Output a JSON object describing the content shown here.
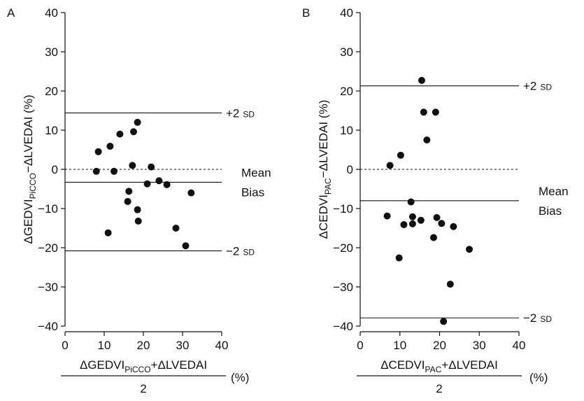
{
  "chart_data": [
    {
      "type": "scatter",
      "panel": "A",
      "xlabel": {
        "parts": [
          {
            "t": "ΔGEDVI"
          },
          {
            "t": "PiCCO",
            "sub": true
          },
          {
            "t": "+ΔLVEDAI"
          }
        ],
        "denominator": "2",
        "unit": "(%)"
      },
      "ylabel": {
        "parts": [
          {
            "t": "ΔGEDVI"
          },
          {
            "t": "PiCCO",
            "sub": true
          },
          {
            "t": "−ΔLVEDAI (%)"
          }
        ]
      },
      "xlim": [
        0,
        40
      ],
      "ylim": [
        -40,
        40
      ],
      "xticks": [
        0,
        10,
        20,
        30,
        40
      ],
      "yticks": [
        -40,
        -30,
        -20,
        -10,
        0,
        10,
        20,
        30,
        40
      ],
      "grid": false,
      "points": [
        {
          "x": 8.0,
          "y": -0.5
        },
        {
          "x": 8.5,
          "y": 4.5
        },
        {
          "x": 11.0,
          "y": -16.2
        },
        {
          "x": 11.5,
          "y": 5.9
        },
        {
          "x": 12.5,
          "y": -0.5
        },
        {
          "x": 14.0,
          "y": 9.0
        },
        {
          "x": 16.0,
          "y": -8.2
        },
        {
          "x": 16.3,
          "y": -5.6
        },
        {
          "x": 17.2,
          "y": 1.0
        },
        {
          "x": 17.5,
          "y": 9.6
        },
        {
          "x": 18.5,
          "y": 12.0
        },
        {
          "x": 18.5,
          "y": -10.3
        },
        {
          "x": 18.7,
          "y": -13.2
        },
        {
          "x": 21.0,
          "y": -3.7
        },
        {
          "x": 22.0,
          "y": 0.6
        },
        {
          "x": 24.0,
          "y": -2.9
        },
        {
          "x": 26.0,
          "y": -3.9
        },
        {
          "x": 28.3,
          "y": -15.0
        },
        {
          "x": 30.8,
          "y": -19.5
        },
        {
          "x": 32.2,
          "y": -6.0
        }
      ],
      "reference_lines": [
        {
          "y": 14.4,
          "style": "solid",
          "label": "+2",
          "label_sc": "SD"
        },
        {
          "y": -3.3,
          "style": "solid",
          "label": "Mean",
          "label2": "Bias"
        },
        {
          "y": 0,
          "style": "dotted"
        },
        {
          "y": -20.8,
          "style": "solid",
          "label": "−2",
          "label_sc": "SD"
        }
      ]
    },
    {
      "type": "scatter",
      "panel": "B",
      "xlabel": {
        "parts": [
          {
            "t": "ΔCEDVI"
          },
          {
            "t": "PAC",
            "sub": true
          },
          {
            "t": "+ΔLVEDAI"
          }
        ],
        "denominator": "2",
        "unit": "(%)"
      },
      "ylabel": {
        "parts": [
          {
            "t": "ΔCEDVI"
          },
          {
            "t": "PAC",
            "sub": true
          },
          {
            "t": "−ΔLVEDAI (%)"
          }
        ]
      },
      "xlim": [
        0,
        40
      ],
      "ylim": [
        -40,
        40
      ],
      "xticks": [
        0,
        10,
        20,
        30,
        40
      ],
      "yticks": [
        -40,
        -30,
        -20,
        -10,
        0,
        10,
        20,
        30,
        40
      ],
      "grid": false,
      "points": [
        {
          "x": 6.8,
          "y": -11.9
        },
        {
          "x": 7.5,
          "y": 1.0
        },
        {
          "x": 9.8,
          "y": -22.6
        },
        {
          "x": 10.2,
          "y": 3.6
        },
        {
          "x": 11.0,
          "y": -14.1
        },
        {
          "x": 12.8,
          "y": -8.3
        },
        {
          "x": 13.2,
          "y": -12.1
        },
        {
          "x": 13.2,
          "y": -13.9
        },
        {
          "x": 15.3,
          "y": -13.0
        },
        {
          "x": 15.5,
          "y": 22.7
        },
        {
          "x": 16.0,
          "y": 14.6
        },
        {
          "x": 16.8,
          "y": 7.5
        },
        {
          "x": 18.5,
          "y": -17.4
        },
        {
          "x": 19.0,
          "y": 14.6
        },
        {
          "x": 19.3,
          "y": -12.3
        },
        {
          "x": 20.5,
          "y": -13.8
        },
        {
          "x": 21.0,
          "y": -38.8
        },
        {
          "x": 22.7,
          "y": -29.3
        },
        {
          "x": 23.5,
          "y": -14.6
        },
        {
          "x": 27.5,
          "y": -20.4
        }
      ],
      "reference_lines": [
        {
          "y": 21.3,
          "style": "solid",
          "label": "+2",
          "label_sc": "SD"
        },
        {
          "y": -8.0,
          "style": "solid",
          "label": "Mean",
          "label2": "Bias"
        },
        {
          "y": 0,
          "style": "dotted"
        },
        {
          "y": -37.9,
          "style": "solid",
          "label": "−2",
          "label_sc": "SD"
        }
      ]
    }
  ]
}
